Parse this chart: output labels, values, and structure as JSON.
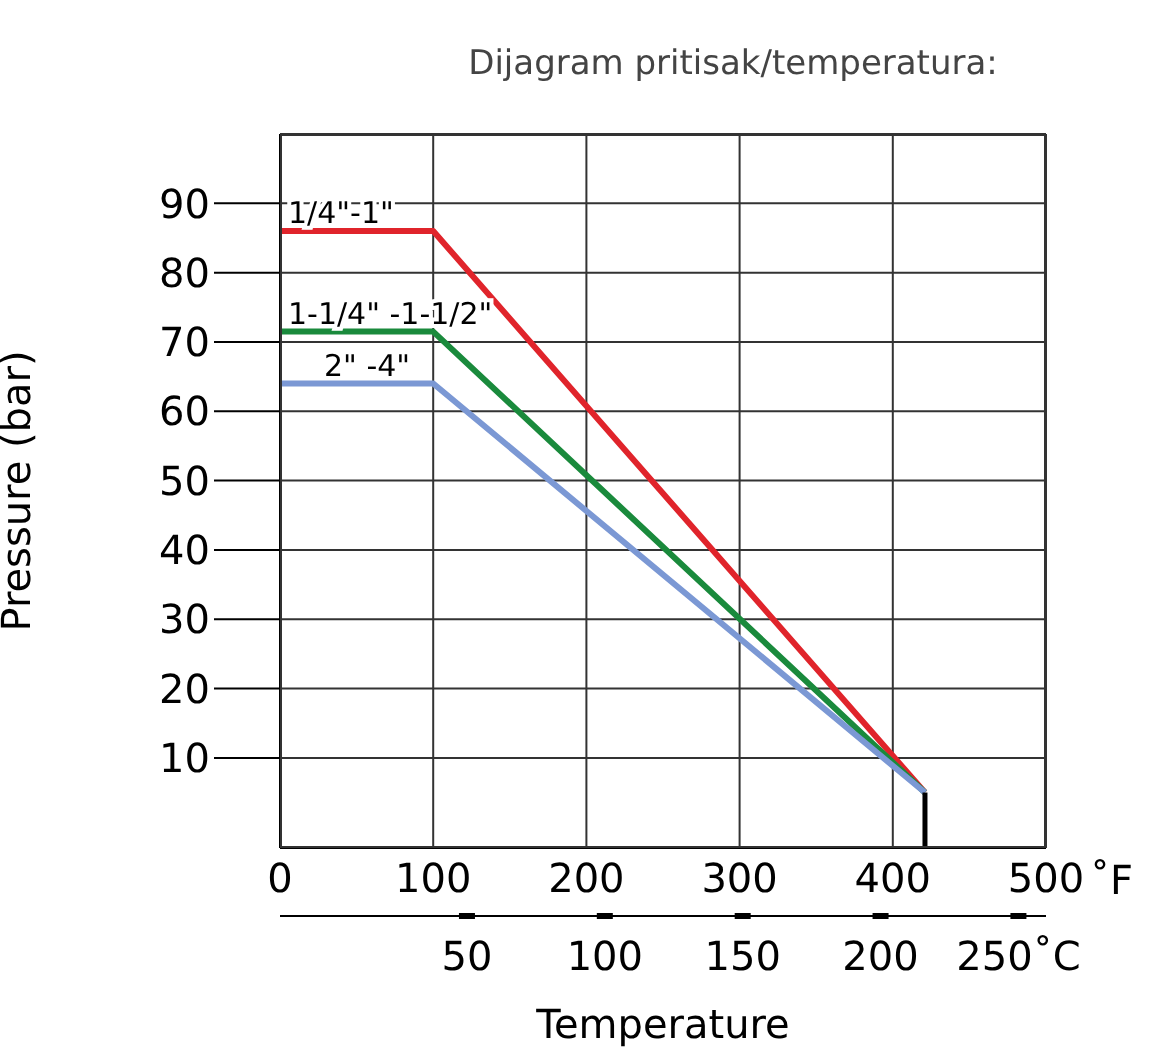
{
  "chart_data": {
    "type": "line",
    "title": "Dijagram pritisak/temperatura:",
    "xlabel": "Temperature",
    "ylabel": "Pressure (bar)",
    "xlim": [
      0,
      500
    ],
    "xticks": [
      0,
      100,
      200,
      300,
      400,
      500
    ],
    "x2lim": [
      -17.8,
      260
    ],
    "x2ticks": [
      50,
      100,
      150,
      200,
      {
        "value": 250,
        "label": "250˚C"
      }
    ],
    "ylim": [
      -3,
      100
    ],
    "yticks": [
      10,
      20,
      30,
      40,
      50,
      60,
      70,
      80,
      90
    ],
    "grid": true,
    "annotations": [
      "˚F"
    ],
    "series": [
      {
        "name": "1/4\"-1\"",
        "color": "#e0242b",
        "x": [
          0,
          100,
          421
        ],
        "values": [
          86,
          86,
          5
        ]
      },
      {
        "name": "1-1/4\" -1-1/2\"",
        "color": "#1a8a3c",
        "x": [
          0,
          100,
          421
        ],
        "values": [
          71.5,
          71.5,
          5
        ]
      },
      {
        "name": "2\" -4\"",
        "color": "#7b98d4",
        "x": [
          0,
          100,
          421
        ],
        "values": [
          64,
          64,
          5
        ]
      },
      {
        "color": "#000000",
        "x": [
          421,
          421
        ],
        "values": [
          5,
          -3
        ]
      }
    ]
  }
}
